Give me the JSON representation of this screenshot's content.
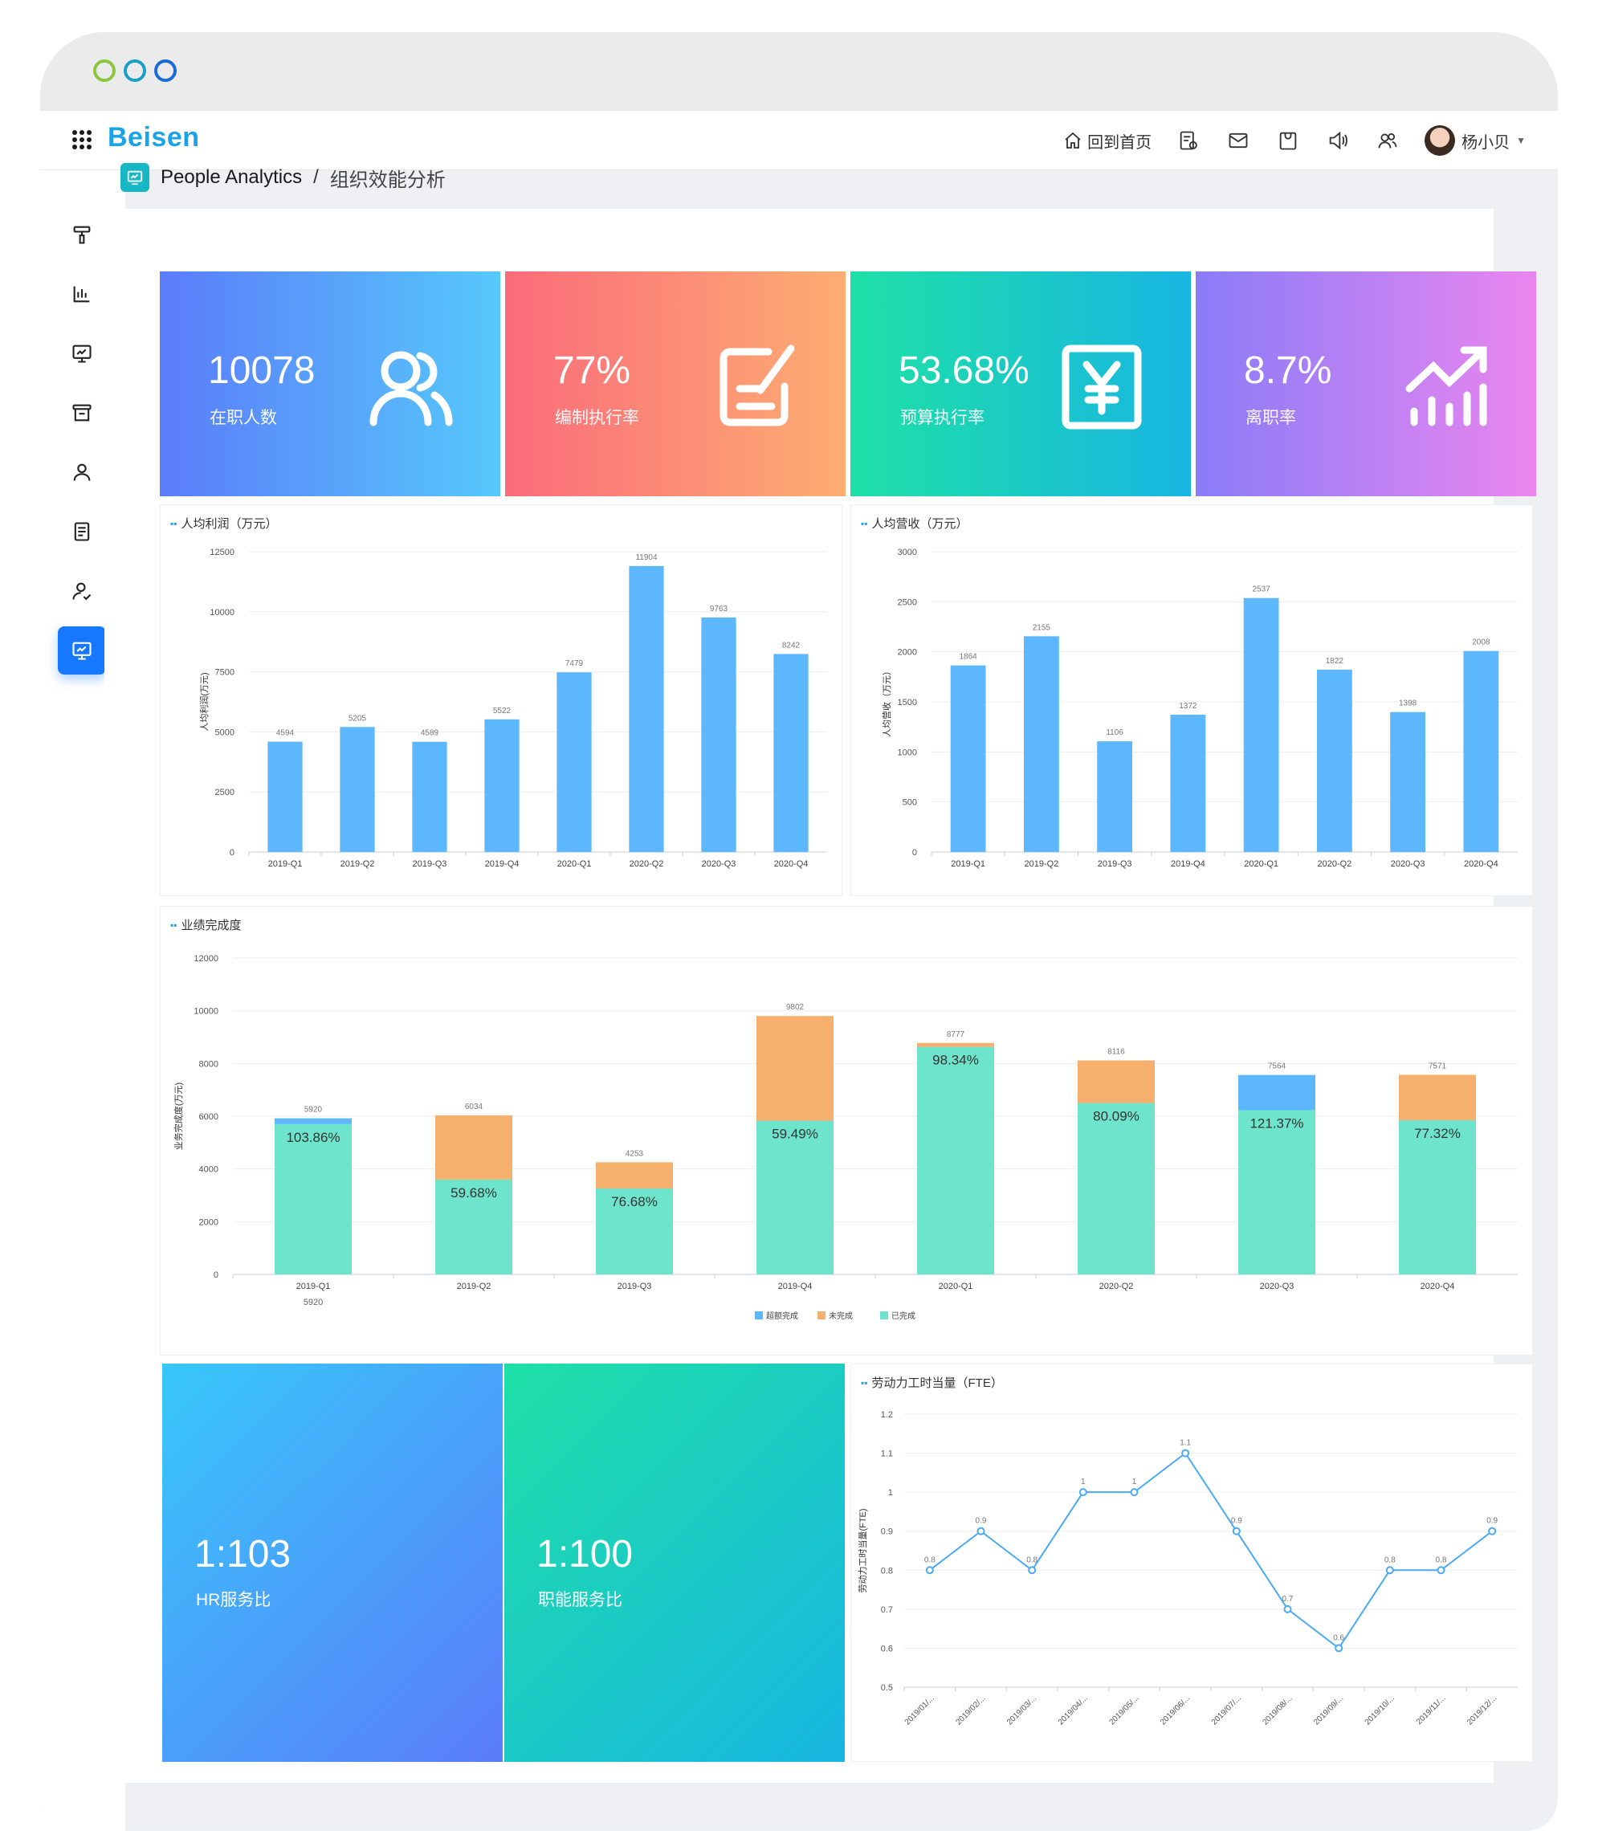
{
  "window": {
    "dots": [
      "#8cc63f",
      "#1ba0c9",
      "#1c6ad6"
    ]
  },
  "header": {
    "logo": "Beisen",
    "home_label": "回到首页",
    "icons": [
      "report-icon",
      "mail-icon",
      "bag-icon",
      "speaker-icon",
      "team-icon"
    ],
    "user_name": "杨小贝"
  },
  "sidebar": {
    "items": [
      {
        "icon": "paint-roller-icon"
      },
      {
        "icon": "bar-chart-icon"
      },
      {
        "icon": "monitor-chart-icon"
      },
      {
        "icon": "archive-icon"
      },
      {
        "icon": "person-icon"
      },
      {
        "icon": "document-icon"
      },
      {
        "icon": "user-check-icon"
      },
      {
        "icon": "analytics-icon",
        "active": true
      }
    ]
  },
  "breadcrumb": {
    "main": "People Analytics",
    "separator": "/",
    "sub": "组织效能分析"
  },
  "kpis": [
    {
      "value": "10078",
      "label": "在职人数",
      "icon": "people-icon",
      "colors": [
        "#5b7cfa",
        "#56c9fb"
      ]
    },
    {
      "value": "77%",
      "label": "编制执行率",
      "icon": "edit-form-icon",
      "colors": [
        "#fb6b7a",
        "#fcae72"
      ]
    },
    {
      "value": "53.68%",
      "label": "预算执行率",
      "icon": "yuan-icon",
      "colors": [
        "#1ee0a6",
        "#18b6e2"
      ]
    },
    {
      "value": "8.7%",
      "label": "离职率",
      "icon": "trend-up-icon",
      "colors": [
        "#8a7cf8",
        "#ea86ee"
      ]
    }
  ],
  "ratios": [
    {
      "value": "1:103",
      "label": "HR服务比",
      "colors": [
        "#37c8fa",
        "#5b7cfa"
      ]
    },
    {
      "value": "1:100",
      "label": "职能服务比",
      "colors": [
        "#1ee0a6",
        "#18b6e2"
      ]
    }
  ],
  "chart_data": [
    {
      "type": "bar",
      "title": "人均利润（万元）",
      "ylabel": "人均利润(万元)",
      "categories": [
        "2019-Q1",
        "2019-Q2",
        "2019-Q3",
        "2019-Q4",
        "2020-Q1",
        "2020-Q2",
        "2020-Q3",
        "2020-Q4"
      ],
      "values": [
        4594,
        5205,
        4589,
        5522,
        7479,
        11904,
        9763,
        8242
      ],
      "ylim": [
        0,
        12500
      ],
      "yticks": [
        0,
        2500,
        5000,
        7500,
        10000,
        12500
      ],
      "color": "#5cb7fc"
    },
    {
      "type": "bar",
      "title": "人均营收（万元）",
      "ylabel": "人均营收（万元）",
      "categories": [
        "2019-Q1",
        "2019-Q2",
        "2019-Q3",
        "2019-Q4",
        "2020-Q1",
        "2020-Q2",
        "2020-Q3",
        "2020-Q4"
      ],
      "values": [
        1864,
        2155,
        1106,
        1372,
        2537,
        1822,
        1398,
        2008
      ],
      "ylim": [
        0,
        3000
      ],
      "yticks": [
        0,
        500,
        1000,
        1500,
        2000,
        2500,
        3000
      ],
      "color": "#5cb7fc"
    },
    {
      "type": "bar",
      "stacked": true,
      "title": "业绩完成度",
      "ylabel": "业务完成度(万元)",
      "categories": [
        "2019-Q1",
        "2019-Q2",
        "2019-Q3",
        "2019-Q4",
        "2020-Q1",
        "2020-Q2",
        "2020-Q3",
        "2020-Q4"
      ],
      "totals": [
        5920,
        6034,
        4253,
        9802,
        8777,
        8116,
        7564,
        7571
      ],
      "percent_labels": [
        "103.86%",
        "59.68%",
        "76.68%",
        "59.49%",
        "98.34%",
        "80.09%",
        "121.37%",
        "77.32%"
      ],
      "extra_label": "5920",
      "series": [
        {
          "name": "已完成",
          "color": "#6ee4cc",
          "values": [
            5700,
            3600,
            3260,
            5830,
            8630,
            6500,
            6230,
            5850
          ]
        },
        {
          "name": "未完成",
          "color": "#f5b06e",
          "values": [
            0,
            2434,
            993,
            3972,
            147,
            1616,
            0,
            1721
          ]
        },
        {
          "name": "超额完成",
          "color": "#5cb7fc",
          "values": [
            220,
            0,
            0,
            0,
            0,
            0,
            1334,
            0
          ]
        }
      ],
      "legend": [
        "超额完成",
        "未完成",
        "已完成"
      ],
      "legend_position": "bottom",
      "ylim": [
        0,
        12000
      ],
      "yticks": [
        0,
        2000,
        4000,
        6000,
        8000,
        10000,
        12000
      ]
    },
    {
      "type": "line",
      "title": "劳动力工时当量（FTE）",
      "ylabel": "劳动力工时当量(FTE)",
      "categories": [
        "2019/01/...",
        "2019/02/...",
        "2019/03/...",
        "2019/04/...",
        "2019/05/...",
        "2019/06/...",
        "2019/07/...",
        "2019/08/...",
        "2019/09/...",
        "2019/10/...",
        "2019/11/...",
        "2019/12/..."
      ],
      "values": [
        0.8,
        0.9,
        0.8,
        1,
        1,
        1.1,
        0.9,
        0.7,
        0.6,
        0.8,
        0.8,
        0.9
      ],
      "ylim": [
        0.5,
        1.2
      ],
      "yticks": [
        0.5,
        0.6,
        0.7,
        0.8,
        0.9,
        1,
        1.1,
        1.2
      ],
      "color": "#4aaaf7"
    }
  ]
}
